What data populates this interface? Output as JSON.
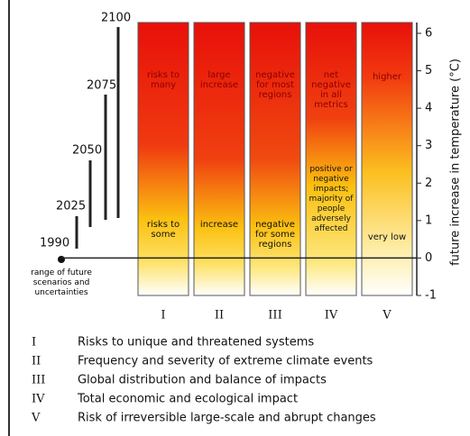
{
  "axis": {
    "label": "future increase in temperature (°C)",
    "ticks": [
      -1,
      0,
      1,
      2,
      3,
      4,
      5,
      6
    ]
  },
  "years": [
    "1990",
    "2025",
    "2050",
    "2075",
    "2100"
  ],
  "range_note": "range of future scenarios and uncertainties",
  "columns": [
    {
      "numeral": "I",
      "upper": "risks to many",
      "lower": "risks to some"
    },
    {
      "numeral": "II",
      "upper": "large increase",
      "lower": "increase"
    },
    {
      "numeral": "III",
      "upper": "negative for most regions",
      "lower": "negative for some regions"
    },
    {
      "numeral": "IV",
      "upper": "net negative in all metrics",
      "lower": "positive or negative impacts; majority of people adversely affected"
    },
    {
      "numeral": "V",
      "upper": "higher",
      "lower": "very low"
    }
  ],
  "legend": [
    {
      "numeral": "I",
      "text": "Risks to unique and threatened systems"
    },
    {
      "numeral": "II",
      "text": "Frequency and severity of extreme climate events"
    },
    {
      "numeral": "III",
      "text": "Global distribution and balance of impacts"
    },
    {
      "numeral": "IV",
      "text": "Total economic and ecological impact"
    },
    {
      "numeral": "V",
      "text": "Risk of irreversible large-scale and abrupt changes"
    }
  ]
}
